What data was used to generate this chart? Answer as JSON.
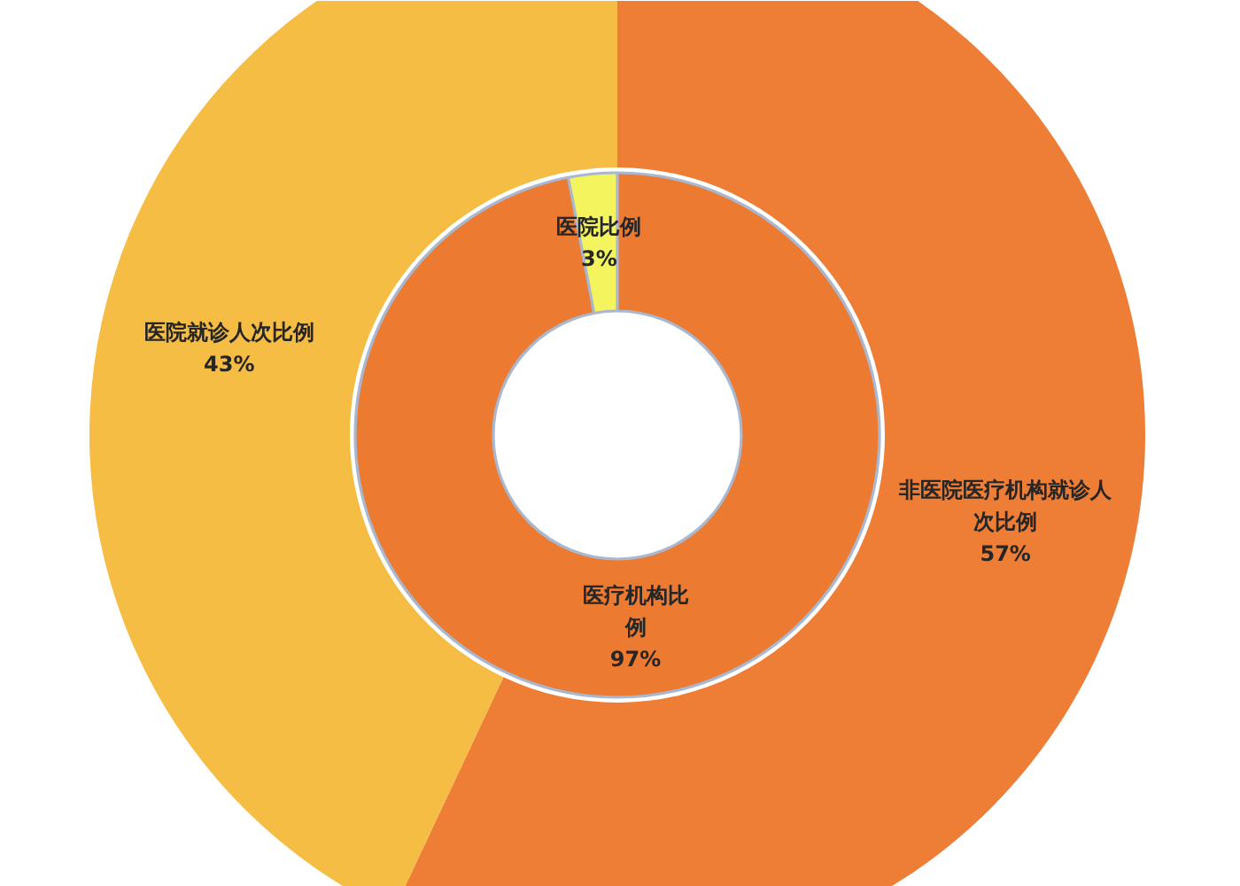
{
  "chart_data": {
    "type": "donut",
    "categories": [
      "医疗机构比例",
      "医院比例"
    ],
    "series": [
      {
        "values": [
          97,
          3
        ],
        "colors": [
          "#ec7a30",
          "#f3f45e"
        ],
        "value_labels": [
          "97%",
          "3%"
        ]
      },
      {
        "values": [
          57,
          43
        ],
        "colors": [
          "#ee7d35",
          "#f6bd45"
        ],
        "value_labels": [
          "非医院医疗机构就诊人次比例\n57%",
          "医院就诊人次比例\n43%"
        ]
      }
    ]
  }
}
